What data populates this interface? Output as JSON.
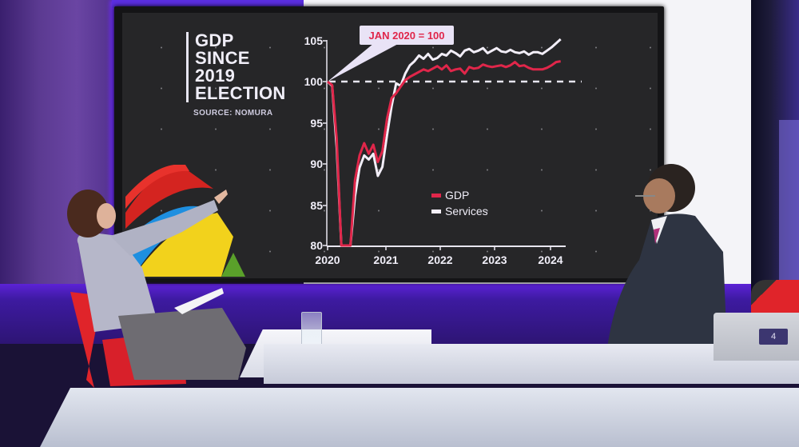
{
  "graphic": {
    "title_lines": [
      "GDP",
      "SINCE",
      "2019",
      "ELECTION"
    ],
    "source": "SOURCE: NOMURA",
    "callout": "JAN 2020 = 100"
  },
  "legend": {
    "items": [
      {
        "label": "GDP",
        "color": "#e0264a"
      },
      {
        "label": "Services",
        "color": "#f2eef8"
      }
    ]
  },
  "axes": {
    "y_ticks": [
      "105",
      "100",
      "95",
      "90",
      "85",
      "80"
    ],
    "x_ticks": [
      "2020",
      "2021",
      "2022",
      "2023",
      "2024"
    ]
  },
  "laptop": {
    "logo": "4"
  },
  "chart_data": {
    "type": "line",
    "title": "GDP SINCE 2019 ELECTION",
    "subtitle": "SOURCE: NOMURA",
    "annotation": "JAN 2020 = 100",
    "xlabel": "",
    "ylabel": "",
    "ylim": [
      80,
      105
    ],
    "xlim": [
      "2020-01",
      "2024-04"
    ],
    "x_ticks": [
      "2020",
      "2021",
      "2022",
      "2023",
      "2024"
    ],
    "y_ticks": [
      80,
      85,
      90,
      95,
      100,
      105
    ],
    "reference_line": {
      "y": 100,
      "style": "dashed",
      "color": "#e8e6f0"
    },
    "legend_position": "center-right inside plot",
    "grid": "dotted",
    "x": [
      "2020-01",
      "2020-02",
      "2020-03",
      "2020-04",
      "2020-05",
      "2020-06",
      "2020-07",
      "2020-08",
      "2020-09",
      "2020-10",
      "2020-11",
      "2020-12",
      "2021-01",
      "2021-02",
      "2021-03",
      "2021-04",
      "2021-05",
      "2021-06",
      "2021-07",
      "2021-08",
      "2021-09",
      "2021-10",
      "2021-11",
      "2021-12",
      "2022-01",
      "2022-02",
      "2022-03",
      "2022-04",
      "2022-05",
      "2022-06",
      "2022-07",
      "2022-08",
      "2022-09",
      "2022-10",
      "2022-11",
      "2022-12",
      "2023-01",
      "2023-02",
      "2023-03",
      "2023-04",
      "2023-05",
      "2023-06",
      "2023-07",
      "2023-08",
      "2023-09",
      "2023-10",
      "2023-11",
      "2023-12",
      "2024-01",
      "2024-02",
      "2024-03",
      "2024-04"
    ],
    "series": [
      {
        "name": "GDP",
        "color": "#e0264a",
        "values": [
          100,
          99.6,
          93,
          80,
          80,
          80,
          88,
          91,
          92.5,
          91.2,
          92.3,
          90.2,
          91.5,
          95.5,
          98,
          98.6,
          99.4,
          100.2,
          100.6,
          100.9,
          101.2,
          101.5,
          101.3,
          101.6,
          101.9,
          101.5,
          102.0,
          101.3,
          101.5,
          101.6,
          101.0,
          101.8,
          101.6,
          101.7,
          102.1,
          101.9,
          101.8,
          101.9,
          102.0,
          101.8,
          102.0,
          102.4,
          101.9,
          102.0,
          101.7,
          101.5,
          101.5,
          101.5,
          101.7,
          102.0,
          102.4,
          102.5
        ]
      },
      {
        "name": "Services",
        "color": "#f2eef8",
        "values": [
          100,
          99.5,
          92,
          80,
          80,
          80,
          86,
          89.5,
          91,
          90.5,
          91.2,
          88.5,
          89.6,
          93.5,
          97,
          99.8,
          99.5,
          101,
          102,
          102.5,
          103.2,
          102.8,
          103.4,
          102.7,
          102.9,
          103.4,
          103.2,
          103.8,
          103.5,
          103.1,
          103.8,
          104.0,
          103.6,
          103.8,
          104.1,
          103.5,
          103.8,
          104.1,
          103.7,
          103.6,
          103.9,
          103.6,
          103.5,
          103.7,
          103.3,
          103.6,
          103.6,
          103.4,
          103.8,
          104.2,
          104.7,
          105.2
        ]
      }
    ]
  }
}
